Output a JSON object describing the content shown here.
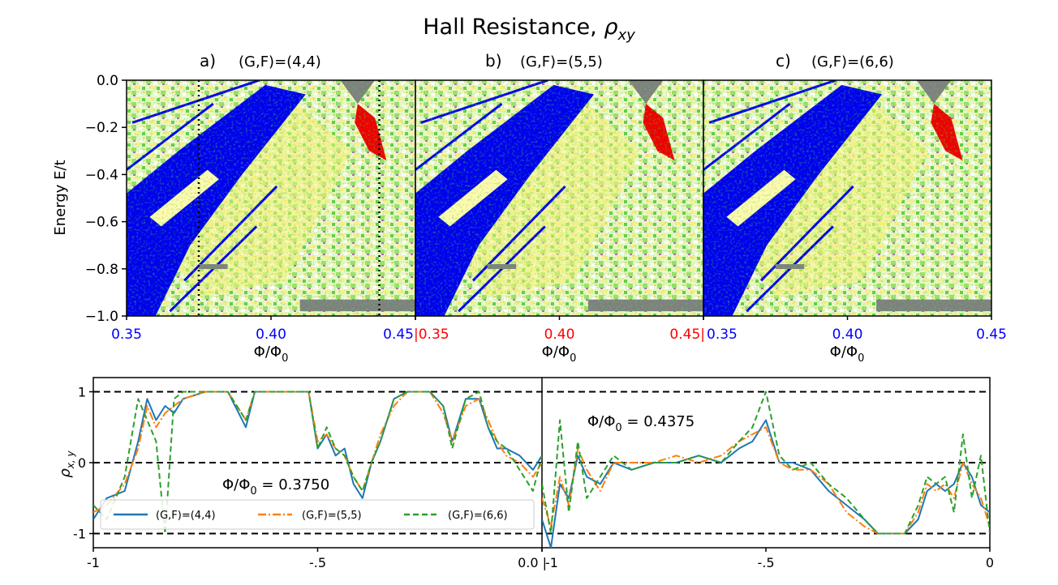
{
  "title_main": "Hall Resistance, ",
  "title_sym": "ρ",
  "title_sub": "xy",
  "colors": {
    "blue_tick": "#0000ff",
    "red_tick": "#ff0000",
    "blue_region": "#0000ee",
    "red_region": "#ee0000",
    "gray_region": "#808080",
    "series1": "#1f77b4",
    "series2": "#ff7f0e",
    "series3": "#2ca02c"
  },
  "chart_data": [
    {
      "type": "heatmap",
      "panel": "a)",
      "label": "(G,F)=(4,4)",
      "xlabel": "Φ/Φ",
      "xlabel_sub": "0",
      "ylabel": "Energy E/t",
      "xlim": [
        0.35,
        0.45
      ],
      "ylim": [
        -1.0,
        0.0
      ],
      "xticks": [
        "0.35",
        "0.40",
        "0.45"
      ],
      "xtick_color": "blue",
      "yticks": [
        "0.0",
        "−0.2",
        "−0.4",
        "−0.6",
        "−0.8",
        "−1.0"
      ],
      "cut_lines": [
        0.375,
        0.4375
      ]
    },
    {
      "type": "heatmap",
      "panel": "b)",
      "label": "(G,F)=(5,5)",
      "xlim": [
        0.35,
        0.45
      ],
      "ylim": [
        -1.0,
        0.0
      ],
      "xticks": [
        "|0.35",
        "0.40",
        "0.45|"
      ],
      "xtick_color": "red"
    },
    {
      "type": "heatmap",
      "panel": "c)",
      "label": "(G,F)=(6,6)",
      "xlim": [
        0.35,
        0.45
      ],
      "ylim": [
        -1.0,
        0.0
      ],
      "xticks": [
        "0.35",
        "0.40",
        "0.45"
      ],
      "xtick_color": "blue"
    },
    {
      "type": "line",
      "ylabel": "ρ",
      "ylabel_sub": "x, y",
      "ylim": [
        -1.2,
        1.2
      ],
      "yticks": [
        "1",
        "0",
        "-1"
      ],
      "xticks_left": [
        "-1",
        "-.5",
        "0.0 |"
      ],
      "xticks_right": [
        "-1",
        "-.5",
        "0"
      ],
      "annotations": [
        {
          "text": "Φ/Φ",
          "sub": "0",
          "rest": " = 0.3750"
        },
        {
          "text": "Φ/Φ",
          "sub": "0",
          "rest": " = 0.4375"
        }
      ],
      "legend": [
        "(G,F)=(4,4)",
        "(G,F)=(5,5)",
        "(G,F)=(6,6)"
      ],
      "left_panel": {
        "x": [
          -1.0,
          -0.97,
          -0.93,
          -0.9,
          -0.88,
          -0.86,
          -0.84,
          -0.82,
          -0.8,
          -0.75,
          -0.7,
          -0.66,
          -0.64,
          -0.6,
          -0.55,
          -0.52,
          -0.5,
          -0.48,
          -0.46,
          -0.44,
          -0.42,
          -0.4,
          -0.38,
          -0.36,
          -0.33,
          -0.3,
          -0.28,
          -0.25,
          -0.22,
          -0.2,
          -0.17,
          -0.14,
          -0.12,
          -0.1,
          -0.08,
          -0.05,
          -0.02,
          0.0
        ],
        "series": [
          {
            "name": "(G,F)=(4,4)",
            "values": [
              -0.8,
              -0.5,
              -0.4,
              0.3,
              0.9,
              0.6,
              0.8,
              0.7,
              0.9,
              1.0,
              1.0,
              0.5,
              1.0,
              1.0,
              1.0,
              1.0,
              0.2,
              0.4,
              0.1,
              0.2,
              -0.3,
              -0.5,
              0.0,
              0.3,
              0.9,
              1.0,
              1.0,
              1.0,
              0.8,
              0.3,
              0.9,
              0.9,
              0.5,
              0.2,
              0.2,
              0.1,
              -0.1,
              0.1
            ]
          },
          {
            "name": "(G,F)=(5,5)",
            "values": [
              -0.7,
              -0.6,
              -0.3,
              0.2,
              0.8,
              0.5,
              0.7,
              0.8,
              0.9,
              1.0,
              1.0,
              0.6,
              1.0,
              1.0,
              1.0,
              1.0,
              0.3,
              0.4,
              0.2,
              0.1,
              -0.2,
              -0.4,
              0.0,
              0.4,
              0.8,
              1.0,
              1.0,
              1.0,
              0.7,
              0.3,
              0.8,
              0.9,
              0.6,
              0.3,
              0.1,
              0.0,
              -0.2,
              0.0
            ]
          },
          {
            "name": "(G,F)=(6,6)",
            "values": [
              -0.6,
              -0.8,
              -0.2,
              0.9,
              0.6,
              0.3,
              -1.0,
              0.9,
              1.0,
              1.0,
              1.0,
              0.6,
              1.0,
              1.0,
              1.0,
              1.0,
              0.2,
              0.5,
              0.2,
              0.1,
              -0.2,
              -0.4,
              0.0,
              0.3,
              0.9,
              1.0,
              1.0,
              1.0,
              0.8,
              0.2,
              0.9,
              1.0,
              0.5,
              0.3,
              0.2,
              -0.1,
              -0.4,
              0.1
            ]
          }
        ]
      },
      "right_panel": {
        "x": [
          -1.0,
          -0.98,
          -0.96,
          -0.94,
          -0.92,
          -0.9,
          -0.87,
          -0.84,
          -0.8,
          -0.75,
          -0.7,
          -0.65,
          -0.6,
          -0.56,
          -0.53,
          -0.5,
          -0.47,
          -0.44,
          -0.4,
          -0.36,
          -0.32,
          -0.28,
          -0.25,
          -0.22,
          -0.19,
          -0.16,
          -0.14,
          -0.12,
          -0.1,
          -0.08,
          -0.06,
          -0.04,
          -0.02,
          0.0
        ],
        "series": [
          {
            "name": "(G,F)=(4,4)",
            "values": [
              -0.8,
              -1.2,
              -0.3,
              -0.5,
              0.1,
              -0.2,
              -0.3,
              0.0,
              -0.1,
              0.0,
              0.0,
              0.1,
              0.0,
              0.2,
              0.3,
              0.6,
              0.0,
              0.0,
              -0.1,
              -0.4,
              -0.6,
              -0.8,
              -1.0,
              -1.0,
              -1.0,
              -0.8,
              -0.4,
              -0.3,
              -0.4,
              -0.3,
              0.0,
              -0.2,
              -0.6,
              -0.7
            ]
          },
          {
            "name": "(G,F)=(5,5)",
            "values": [
              -0.5,
              -0.9,
              -0.2,
              -0.6,
              0.2,
              -0.1,
              -0.4,
              0.0,
              0.0,
              0.0,
              0.1,
              0.0,
              0.1,
              0.3,
              0.4,
              0.5,
              0.0,
              -0.1,
              -0.1,
              -0.3,
              -0.7,
              -0.9,
              -1.0,
              -1.0,
              -1.0,
              -0.7,
              -0.3,
              -0.4,
              -0.3,
              -0.5,
              0.0,
              -0.3,
              -0.5,
              -0.9
            ]
          },
          {
            "name": "(G,F)=(6,6)",
            "values": [
              -0.3,
              -1.0,
              0.6,
              -0.7,
              0.3,
              -0.5,
              -0.2,
              0.1,
              -0.1,
              0.0,
              0.0,
              0.1,
              0.0,
              0.3,
              0.5,
              1.0,
              0.1,
              -0.1,
              0.0,
              -0.3,
              -0.5,
              -0.8,
              -1.0,
              -1.0,
              -1.0,
              -0.6,
              -0.2,
              -0.3,
              -0.2,
              -0.7,
              0.4,
              -0.5,
              0.1,
              -1.0
            ]
          }
        ]
      }
    }
  ]
}
